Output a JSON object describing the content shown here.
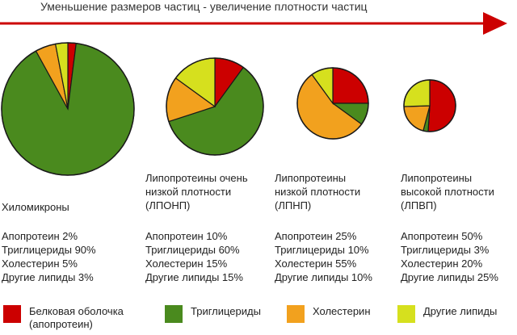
{
  "title": "Уменьшение размеров частиц - увеличение плотности частиц",
  "colors": {
    "protein": "#cc0000",
    "triglycerides": "#4a8a1e",
    "cholesterol": "#f2a11e",
    "other": "#d6e01e",
    "arrow": "#cc0000"
  },
  "chart_data": {
    "type": "pie",
    "title": "Уменьшение размеров частиц - увеличение плотности частиц",
    "series_order": [
      "Белковая оболочка (апопротеин)",
      "Триглицериды",
      "Холестерин",
      "Другие липиды"
    ],
    "charts": [
      {
        "id": "chylo",
        "name_lines": [
          "Хиломикроны"
        ],
        "values": {
          "protein": 2,
          "triglycerides": 90,
          "cholesterol": 5,
          "other": 3
        },
        "labels": [
          "Апопротеин 2%",
          "Триглицериды 90%",
          "Холестерин 5%",
          "Другие липиды 3%"
        ]
      },
      {
        "id": "vldl",
        "name_lines": [
          "Липопротеины очень",
          "низкой плотности",
          "(ЛПОНП)"
        ],
        "values": {
          "protein": 10,
          "triglycerides": 60,
          "cholesterol": 15,
          "other": 15
        },
        "labels": [
          "Апопротеин 10%",
          "Триглицериды 60%",
          "Холестерин 15%",
          "Другие липиды 15%"
        ]
      },
      {
        "id": "ldl",
        "name_lines": [
          "Липопротеины",
          "низкой плотности",
          "(ЛПНП)"
        ],
        "values": {
          "protein": 25,
          "triglycerides": 10,
          "cholesterol": 55,
          "other": 10
        },
        "labels": [
          "Апопротеин 25%",
          "Триглицериды 10%",
          "Холестерин 55%",
          "Другие липиды 10%"
        ]
      },
      {
        "id": "hdl",
        "name_lines": [
          "Липопротеины",
          "высокой плотности",
          "(ЛПВП)"
        ],
        "values": {
          "protein": 50,
          "triglycerides": 3,
          "cholesterol": 20,
          "other": 25
        },
        "labels": [
          "Апопротеин 50%",
          "Триглицериды 3%",
          "Холестерин 20%",
          "Другие липиды 25%"
        ]
      }
    ]
  },
  "legend": [
    {
      "key": "protein",
      "lines": [
        "Белковая оболочка",
        "(апопротеин)"
      ]
    },
    {
      "key": "triglycerides",
      "lines": [
        "Триглицериды"
      ]
    },
    {
      "key": "cholesterol",
      "lines": [
        "Холестерин"
      ]
    },
    {
      "key": "other",
      "lines": [
        "Другие липиды"
      ]
    }
  ]
}
